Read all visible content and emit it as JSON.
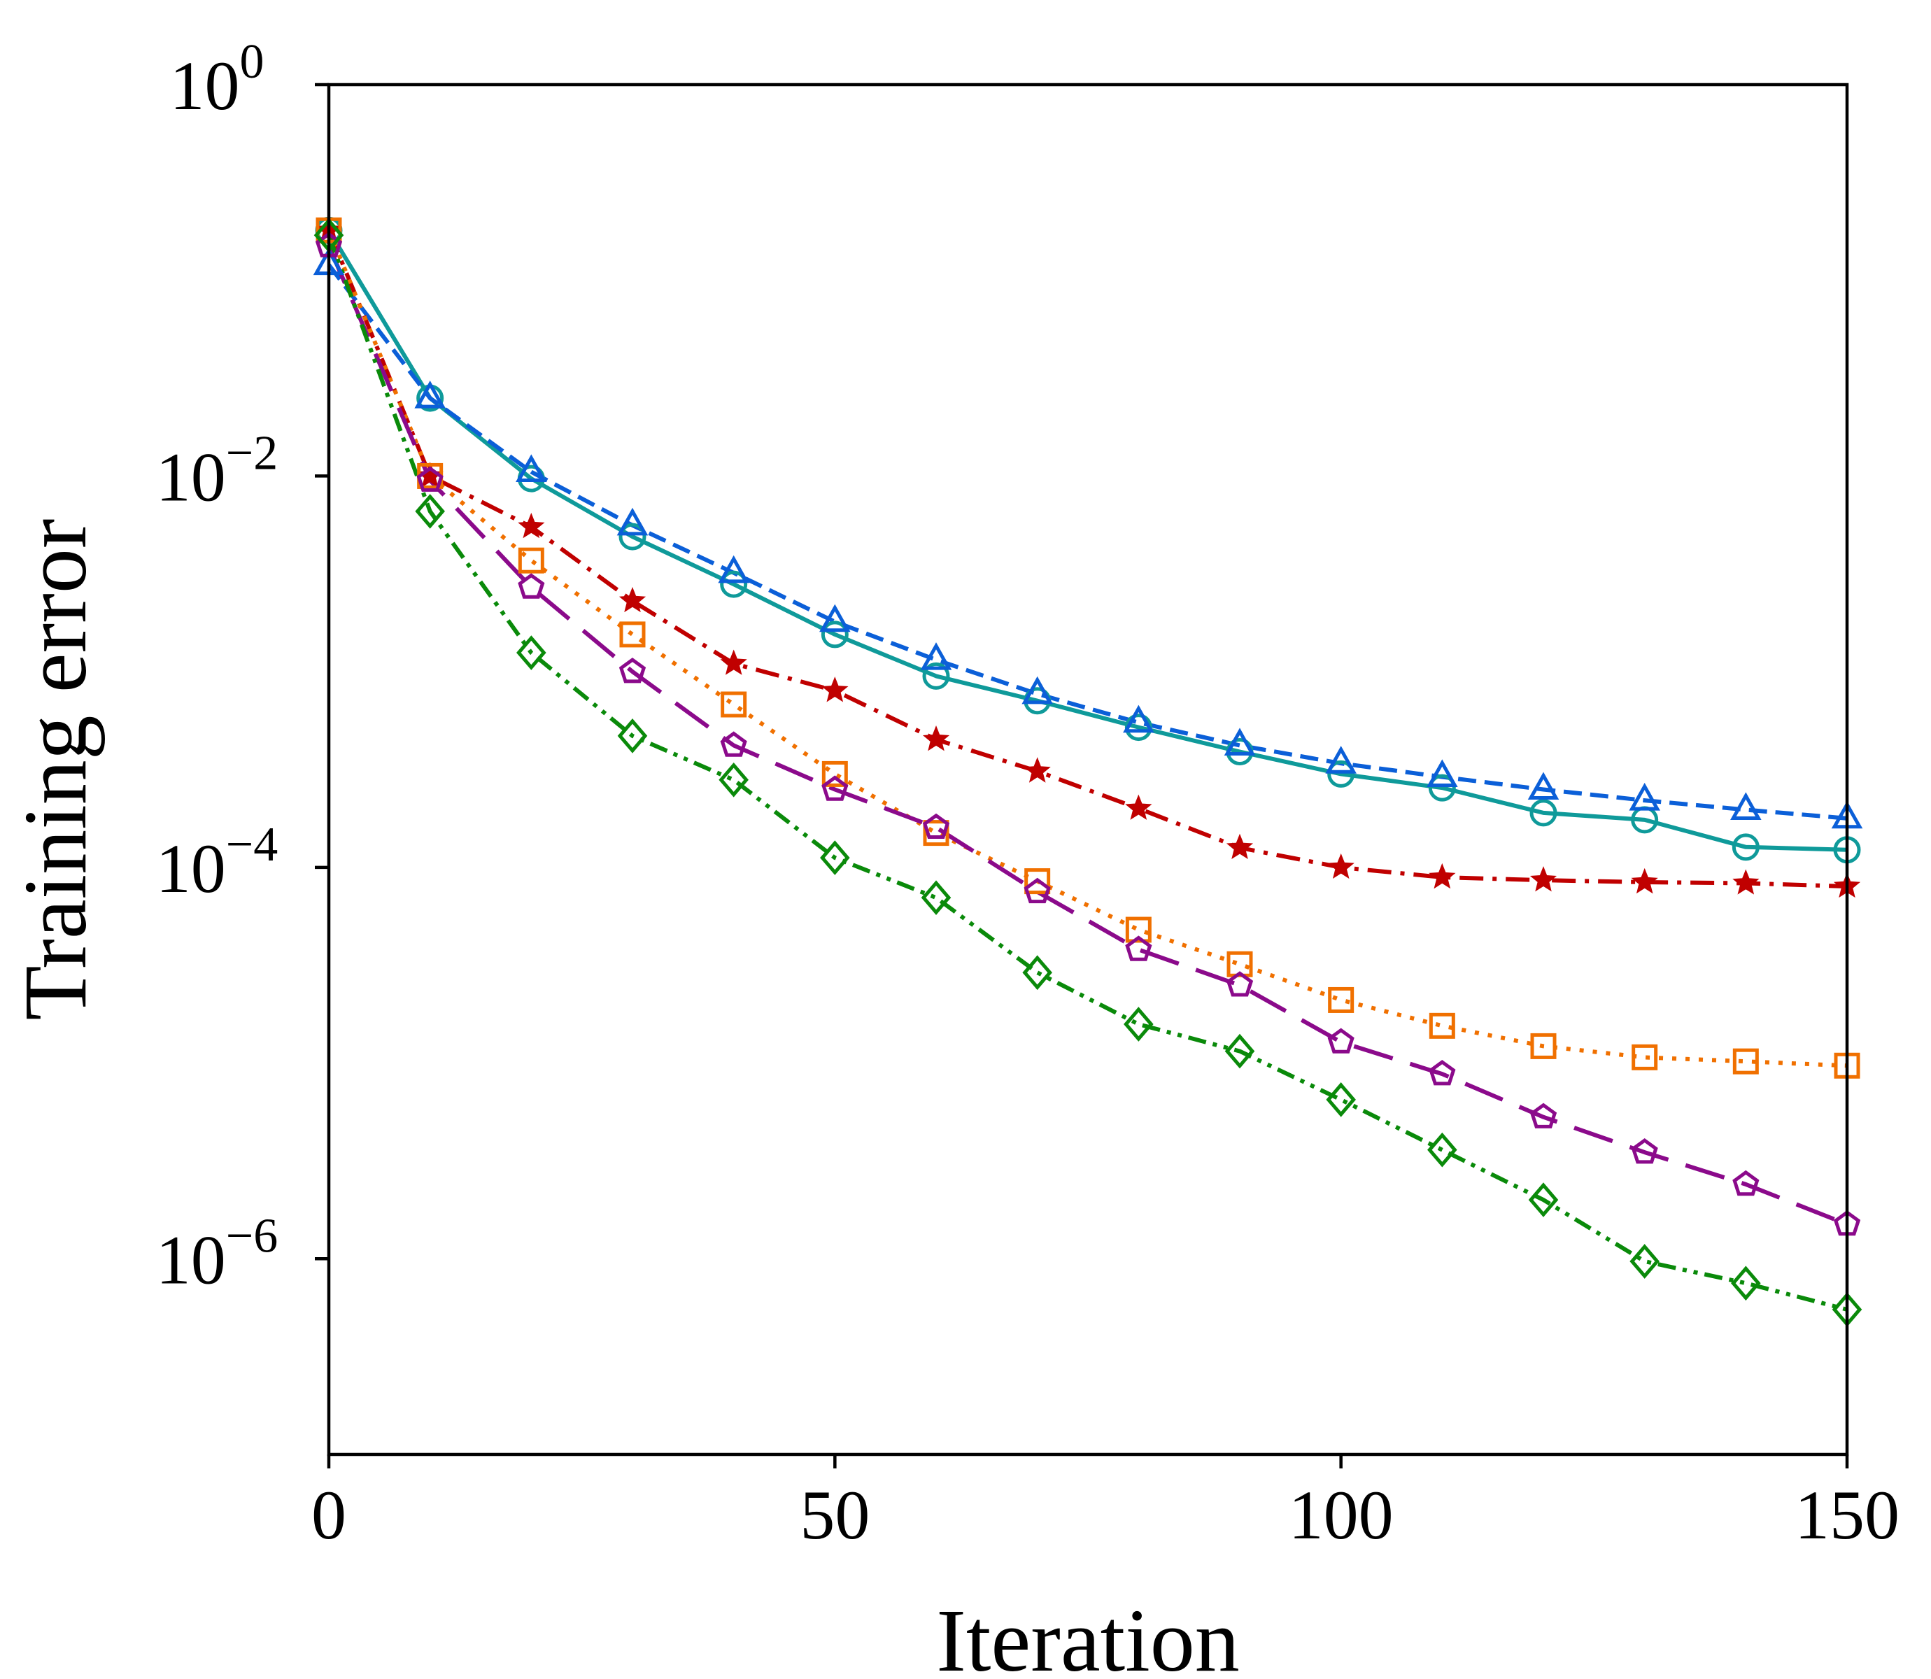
{
  "chart_data": {
    "type": "line",
    "xlabel": "Iteration",
    "ylabel": "Training error",
    "yscale": "log",
    "xlim": [
      0,
      150
    ],
    "ylim": [
      1e-07,
      1
    ],
    "xticks": [
      {
        "value": 0,
        "label": "0"
      },
      {
        "value": 50,
        "label": "50"
      },
      {
        "value": 100,
        "label": "100"
      },
      {
        "value": 150,
        "label": "150"
      }
    ],
    "yticks": [
      {
        "value": 1,
        "base": "10",
        "exp": "0"
      },
      {
        "value": 0.01,
        "base": "10",
        "exp": "−2"
      },
      {
        "value": 0.0001,
        "base": "10",
        "exp": "−4"
      },
      {
        "value": 1e-06,
        "base": "10",
        "exp": "−6"
      }
    ],
    "x": [
      0,
      10,
      20,
      30,
      40,
      50,
      60,
      70,
      80,
      90,
      100,
      110,
      120,
      130,
      140,
      150
    ],
    "series": [
      {
        "name": "series-circle",
        "color": "#0f9a9a",
        "dash": "solid",
        "marker": "circle",
        "values": [
          0.18,
          0.025,
          0.0097,
          0.0049,
          0.0028,
          0.00155,
          0.00095,
          0.00071,
          0.00052,
          0.00039,
          0.0003,
          0.000255,
          0.00019,
          0.000175,
          0.000127,
          0.000123
        ]
      },
      {
        "name": "series-triangle",
        "color": "#0b5fd8",
        "dash": "dashed",
        "marker": "triangle",
        "values": [
          0.12,
          0.025,
          0.0105,
          0.0056,
          0.0032,
          0.0018,
          0.00115,
          0.00077,
          0.00055,
          0.00042,
          0.00034,
          0.00029,
          0.00025,
          0.00022,
          0.000197,
          0.000178
        ]
      },
      {
        "name": "series-star",
        "color": "#c00000",
        "dash": "dashdot",
        "marker": "star",
        "values": [
          0.18,
          0.01,
          0.0055,
          0.0023,
          0.0011,
          0.0008,
          0.00045,
          0.00031,
          0.0002,
          0.000126,
          0.0001,
          8.9e-05,
          8.6e-05,
          8.4e-05,
          8.3e-05,
          8e-05
        ]
      },
      {
        "name": "series-square",
        "color": "#f07000",
        "dash": "dotted",
        "marker": "square",
        "values": [
          0.18,
          0.01,
          0.0037,
          0.00155,
          0.00068,
          0.0003,
          0.00015,
          8.5e-05,
          4.8e-05,
          3.2e-05,
          2.1e-05,
          1.55e-05,
          1.22e-05,
          1.07e-05,
          1.02e-05,
          9.7e-06
        ]
      },
      {
        "name": "series-pentagon",
        "color": "#8b0a8b",
        "dash": "longdash",
        "marker": "pentagon",
        "values": [
          0.15,
          0.0095,
          0.0027,
          0.001,
          0.00042,
          0.00025,
          0.00016,
          7.5e-05,
          3.8e-05,
          2.5e-05,
          1.28e-05,
          8.8e-06,
          5.3e-06,
          3.5e-06,
          2.4e-06,
          1.5e-06
        ]
      },
      {
        "name": "series-diamond",
        "color": "#0a8a0a",
        "dash": "dashdotdot",
        "marker": "diamond",
        "values": [
          0.17,
          0.0066,
          0.00125,
          0.00047,
          0.00028,
          0.000112,
          7e-05,
          2.9e-05,
          1.58e-05,
          1.15e-05,
          6.5e-06,
          3.6e-06,
          2e-06,
          9.7e-07,
          7.5e-07,
          5.5e-07
        ]
      }
    ]
  }
}
